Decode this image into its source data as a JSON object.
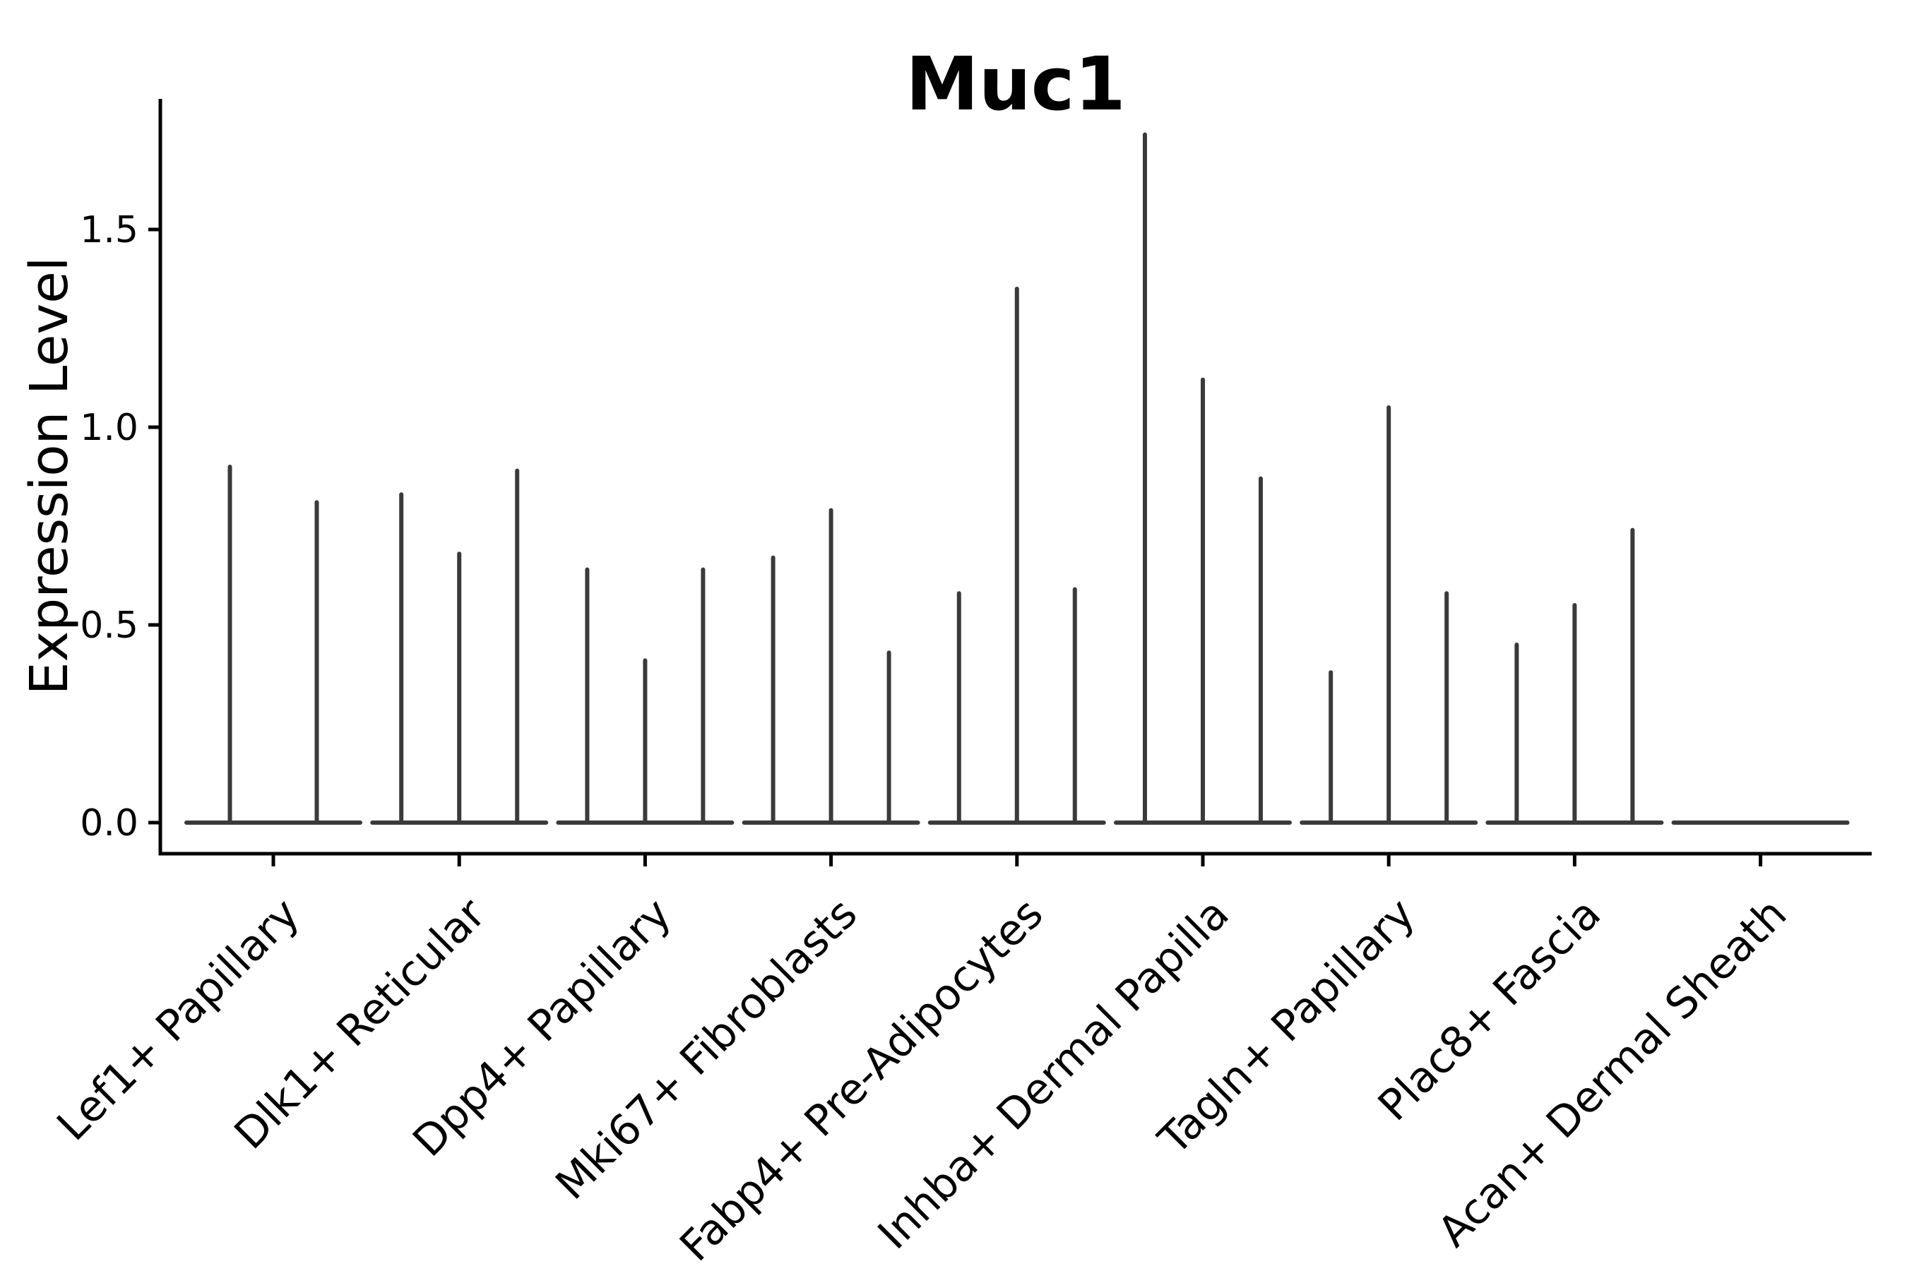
{
  "title": "Muc1",
  "y_axis": {
    "label": "Expression Level",
    "tick_labels": [
      "0.0",
      "0.5",
      "1.0",
      "1.5"
    ]
  },
  "chart_data": {
    "type": "violin",
    "title": "Muc1",
    "xlabel": "",
    "ylabel": "Expression Level",
    "ylim": [
      -0.08,
      1.83
    ],
    "y_ticks": [
      0.0,
      0.5,
      1.0,
      1.5
    ],
    "grid": false,
    "legend": "none",
    "x_tick_rotation_deg": 45,
    "categories": [
      "Lef1+ Papillary",
      "Dlk1+ Reticular",
      "Dpp4+ Papillary",
      "Mki67+ Fibroblasts",
      "Fabp4+ Pre-Adipocytes",
      "Inhba+ Dermal Papilla",
      "Tagln+ Papillary",
      "Plac8+ Fascia",
      "Acan+ Dermal Sheath"
    ],
    "groups": [
      {
        "category": "Lef1+ Papillary",
        "violin_max_expression": [
          0.9,
          0.81
        ]
      },
      {
        "category": "Dlk1+ Reticular",
        "violin_max_expression": [
          0.83,
          0.68,
          0.89
        ]
      },
      {
        "category": "Dpp4+ Papillary",
        "violin_max_expression": [
          0.64,
          0.41,
          0.64
        ]
      },
      {
        "category": "Mki67+ Fibroblasts",
        "violin_max_expression": [
          0.67,
          0.79,
          0.43
        ]
      },
      {
        "category": "Fabp4+ Pre-Adipocytes",
        "violin_max_expression": [
          0.58,
          1.35,
          0.59
        ]
      },
      {
        "category": "Inhba+ Dermal Papilla",
        "violin_max_expression": [
          1.74,
          1.12,
          0.87
        ]
      },
      {
        "category": "Tagln+ Papillary",
        "violin_max_expression": [
          0.38,
          1.05,
          0.58
        ]
      },
      {
        "category": "Plac8+ Fascia",
        "violin_max_expression": [
          0.45,
          0.55,
          0.74
        ]
      },
      {
        "category": "Acan+ Dermal Sheath",
        "violin_max_expression": [
          0,
          0,
          0
        ]
      }
    ]
  },
  "colors": {
    "violin": "#3a3a3a",
    "axis": "#000000",
    "text": "#000000",
    "background": "#ffffff"
  }
}
